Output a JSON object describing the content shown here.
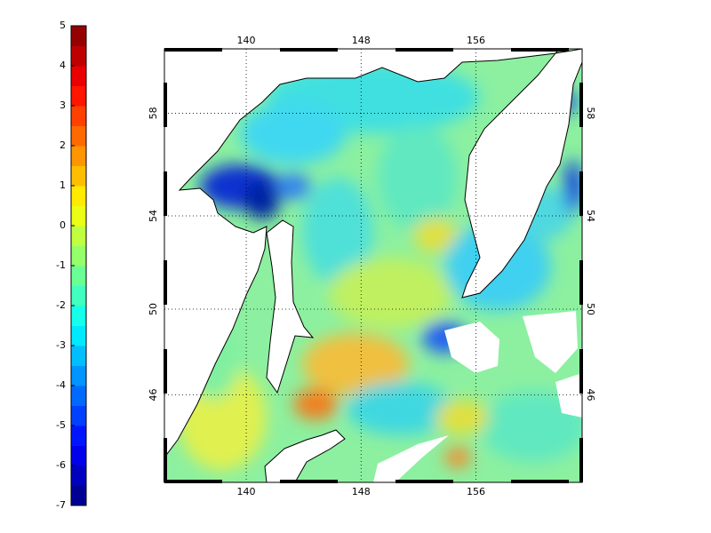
{
  "colorbar": {
    "lim": [
      -7,
      5
    ],
    "ticks": [
      -7,
      -6,
      -5,
      -4,
      -3,
      -2,
      -1,
      0,
      1,
      2,
      3,
      4,
      5
    ]
  },
  "map": {
    "projection": "mercator",
    "lon_lim": [
      134.3,
      163.4
    ],
    "lat_lim": [
      41.6,
      60.3
    ],
    "lon_ticks": [
      140,
      148,
      156
    ],
    "lat_ticks": [
      46,
      50,
      54,
      58
    ],
    "grid": true
  }
}
